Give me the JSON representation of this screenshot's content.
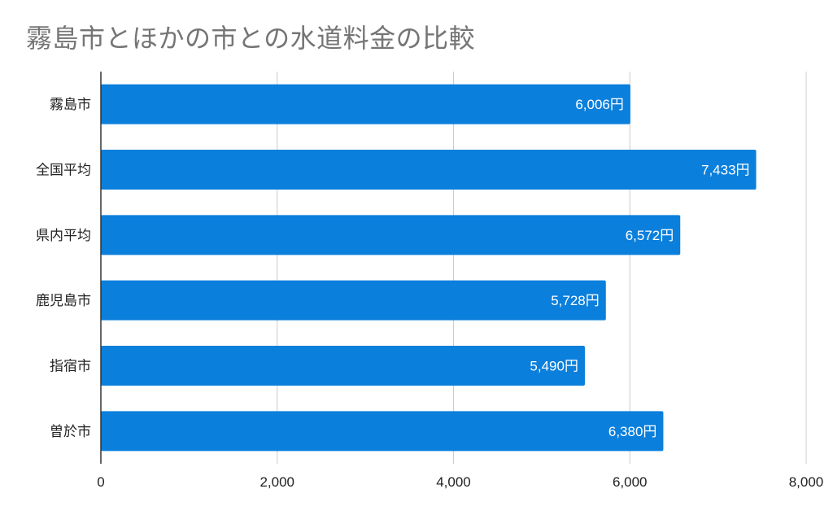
{
  "chart_data": {
    "type": "bar",
    "orientation": "horizontal",
    "title": "霧島市とほかの市との水道料金の比較",
    "categories": [
      "霧島市",
      "全国平均",
      "県内平均",
      "鹿児島市",
      "指宿市",
      "曽於市"
    ],
    "values": [
      6006,
      7433,
      6572,
      5728,
      5490,
      6380
    ],
    "data_labels": [
      "6,006円",
      "7,433円",
      "6,572円",
      "5,728円",
      "5,490円",
      "6,380円"
    ],
    "x_ticks": [
      0,
      2000,
      4000,
      6000,
      8000
    ],
    "x_tick_labels": [
      "0",
      "2,000",
      "4,000",
      "6,000",
      "8,000"
    ],
    "xlim": [
      0,
      8000
    ],
    "grid": "vertical",
    "legend": "none",
    "colors": {
      "bar": "#0b7fdc",
      "grid": "#cccccc",
      "axis": "#333333",
      "title": "#757575"
    }
  }
}
